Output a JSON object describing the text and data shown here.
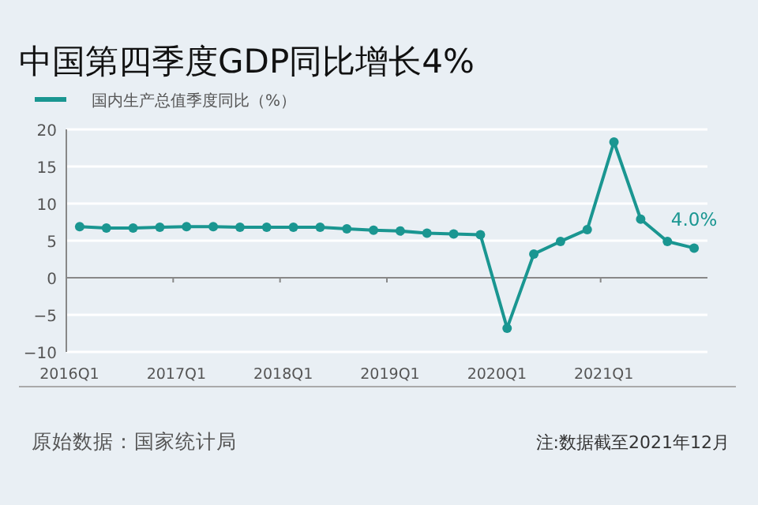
{
  "chart_data": {
    "type": "line",
    "title": "中国第四季度GDP同比增长4%",
    "categories": [
      "2016Q1",
      null,
      null,
      null,
      "2017Q1",
      null,
      null,
      null,
      "2018Q1",
      null,
      null,
      null,
      "2019Q1",
      null,
      null,
      null,
      "2020Q1",
      null,
      null,
      null,
      "2021Q1",
      null,
      null,
      null
    ],
    "series": [
      {
        "name": "国内生产总值季度同比（%）",
        "color": "#1a9691",
        "values": [
          6.9,
          6.7,
          6.7,
          6.8,
          6.9,
          6.9,
          6.8,
          6.8,
          6.8,
          6.8,
          6.6,
          6.4,
          6.3,
          6.0,
          5.9,
          5.8,
          -6.8,
          3.2,
          4.9,
          6.5,
          18.3,
          7.9,
          4.9,
          4.0
        ],
        "value_labels": [
          null,
          null,
          null,
          null,
          null,
          null,
          null,
          null,
          null,
          null,
          null,
          null,
          null,
          null,
          null,
          null,
          null,
          null,
          null,
          null,
          null,
          null,
          null,
          "4.0%"
        ]
      }
    ],
    "ylim": [
      -10,
      20
    ],
    "yticks": [
      -10,
      -5,
      0,
      5,
      10,
      15,
      20
    ],
    "grid": "y",
    "legend": "top left",
    "marker": "circle",
    "line_style": "solid",
    "annotations": [
      "原始数据：国家统计局",
      "注:数据截至2021年12月"
    ]
  }
}
